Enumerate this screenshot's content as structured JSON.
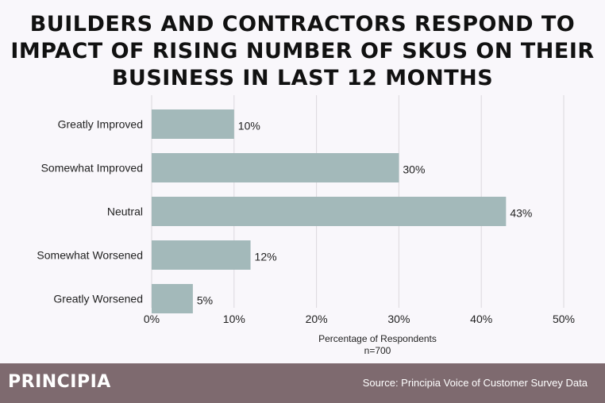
{
  "header": {
    "title_lines": [
      "BUILDERS AND CONTRACTORS RESPOND TO",
      "IMPACT OF RISING NUMBER OF SKUS ON THEIR",
      "BUSINESS IN LAST 12 MONTHS"
    ]
  },
  "footer": {
    "logo": "PRINCIPIA",
    "source": "Source: Principia Voice of Customer Survey Data"
  },
  "colors": {
    "bar": "#a3b9ba",
    "grid": "#dcd8de",
    "footer_bg": "#7e6a6f",
    "background": "#f9f7fb"
  },
  "chart_data": {
    "type": "bar",
    "orientation": "horizontal",
    "categories": [
      "Greatly Improved",
      "Somewhat Improved",
      "Neutral",
      "Somewhat Worsened",
      "Greatly Worsened"
    ],
    "values": [
      10,
      30,
      43,
      12,
      5
    ],
    "value_labels": [
      "10%",
      "30%",
      "43%",
      "12%",
      "5%"
    ],
    "xlabel": "Percentage of Respondents",
    "xlabel_sub": "n=700",
    "xlim": [
      0,
      50
    ],
    "xticks": [
      0,
      10,
      20,
      30,
      40,
      50
    ],
    "xtick_labels": [
      "0%",
      "10%",
      "20%",
      "30%",
      "40%",
      "50%"
    ],
    "grid": "vertical"
  }
}
